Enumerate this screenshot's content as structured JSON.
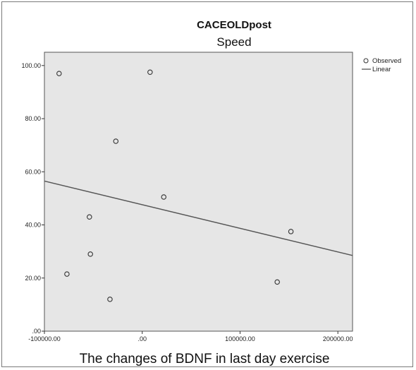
{
  "chart_data": {
    "type": "scatter",
    "title": "CACEOLDpost",
    "subtitle": "Speed",
    "xlabel": "The changes of BDNF in last day exercise",
    "ylabel": "",
    "xlim": [
      -100000,
      215000
    ],
    "ylim": [
      0,
      105
    ],
    "x_ticks": [
      -100000,
      0,
      100000,
      200000
    ],
    "x_tick_labels": [
      "-100000.00",
      ".00",
      "100000.00",
      "200000.00"
    ],
    "y_ticks": [
      0,
      20,
      40,
      60,
      80,
      100
    ],
    "y_tick_labels": [
      ".00",
      "20.00",
      "40.00",
      "60.00",
      "80.00",
      "100.00"
    ],
    "grid": false,
    "legend_position": "top-right",
    "series": [
      {
        "name": "Observed",
        "marker": "circle",
        "x": [
          -85000,
          8000,
          -27000,
          22000,
          -54000,
          -53000,
          -77000,
          -33000,
          138000,
          152000
        ],
        "y": [
          97,
          97.5,
          71.5,
          50.5,
          43,
          29,
          21.5,
          12,
          18.5,
          37.5
        ]
      },
      {
        "name": "Linear",
        "type": "line",
        "x": [
          -100000,
          215000
        ],
        "y": [
          56.5,
          28.5
        ]
      }
    ],
    "colors": {
      "plot_bg": "#e6e6e6",
      "marker": "#333333",
      "line": "#555555"
    }
  }
}
